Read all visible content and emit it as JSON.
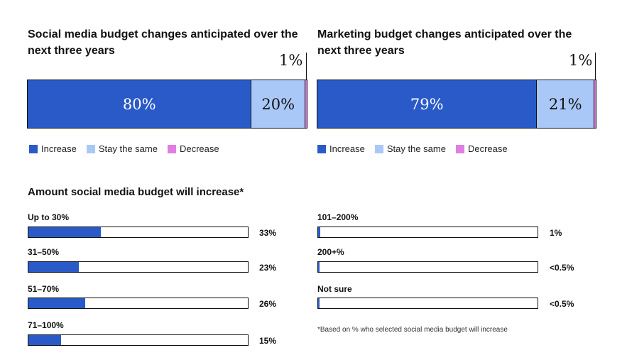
{
  "chart_data": [
    {
      "type": "bar",
      "stacked": true,
      "orientation": "horizontal",
      "title": "Social media budget changes anticipated over the next three years",
      "series": [
        {
          "name": "Increase",
          "values": [
            80
          ],
          "label": "80%"
        },
        {
          "name": "Stay the same",
          "values": [
            20
          ],
          "label": "20%"
        },
        {
          "name": "Decrease",
          "values": [
            1
          ],
          "label": "1%"
        }
      ],
      "legend_position": "bottom-left"
    },
    {
      "type": "bar",
      "stacked": true,
      "orientation": "horizontal",
      "title": "Marketing budget changes anticipated over the next three years",
      "series": [
        {
          "name": "Increase",
          "values": [
            79
          ],
          "label": "79%"
        },
        {
          "name": "Stay the same",
          "values": [
            21
          ],
          "label": "21%"
        },
        {
          "name": "Decrease",
          "values": [
            1
          ],
          "label": "1%"
        }
      ],
      "legend_position": "bottom-left"
    },
    {
      "type": "bar",
      "orientation": "horizontal",
      "title": "Amount social media budget will increase*",
      "categories": [
        "Up to 30%",
        "31–50%",
        "51–70%",
        "71–100%",
        "101–200%",
        "200+%",
        "Not sure"
      ],
      "values": [
        33,
        23,
        26,
        15,
        1,
        0.5,
        0.5
      ],
      "value_labels": [
        "33%",
        "23%",
        "26%",
        "15%",
        "1%",
        "<0.5%",
        "<0.5%"
      ],
      "xlim": [
        0,
        100
      ],
      "footnote": "*Based on % who selected social media budget will increase"
    }
  ],
  "colors": {
    "increase": "#2a5ac8",
    "same": "#a9c8f7",
    "decrease": "#e17fe0"
  }
}
